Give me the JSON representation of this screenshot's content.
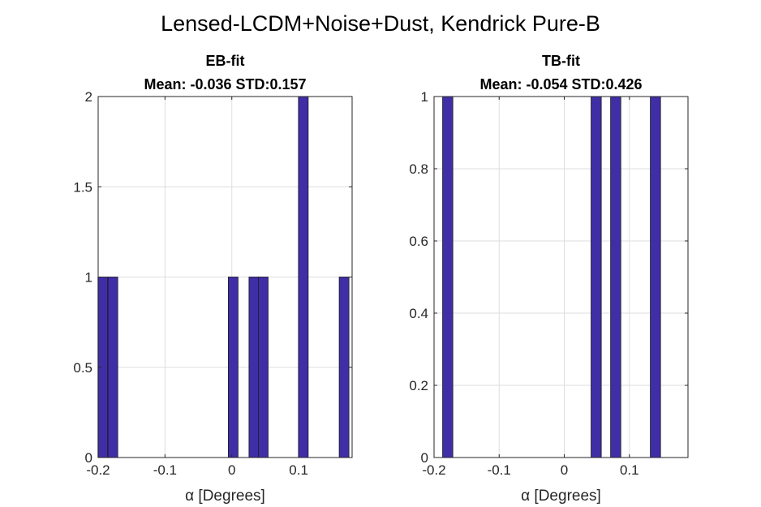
{
  "figure": {
    "title": "Lensed-LCDM+Noise+Dust, Kendrick Pure-B"
  },
  "colors": {
    "bar_fill": "#3F2EA6",
    "bar_edge": "#1a1a1a",
    "grid": "#dedede",
    "axis": "#262626"
  },
  "chart_data": [
    {
      "type": "bar",
      "title": "EB-fit",
      "subtitle": "Mean: -0.036 STD:0.157",
      "xlabel": "α [Degrees]",
      "ylabel": "",
      "xlim": [
        -0.2,
        0.18
      ],
      "ylim": [
        0,
        2
      ],
      "xticks": [
        -0.2,
        -0.1,
        0,
        0.1
      ],
      "xticklabels": [
        "-0.2",
        "-0.1",
        "0",
        "0.1"
      ],
      "yticks": [
        0,
        0.5,
        1,
        1.5,
        2
      ],
      "yticklabels": [
        "0",
        "0.5",
        "1",
        "1.5",
        "2"
      ],
      "grid": true,
      "bin_width": 0.0146,
      "bars": [
        {
          "x": -0.193,
          "count": 1
        },
        {
          "x": -0.178,
          "count": 1
        },
        {
          "x": 0.002,
          "count": 1
        },
        {
          "x": 0.033,
          "count": 1
        },
        {
          "x": 0.047,
          "count": 1
        },
        {
          "x": 0.107,
          "count": 2
        },
        {
          "x": 0.168,
          "count": 1
        }
      ]
    },
    {
      "type": "bar",
      "title": "TB-fit",
      "subtitle": "Mean: -0.054 STD:0.426",
      "xlabel": "α [Degrees]",
      "ylabel": "",
      "xlim": [
        -0.2,
        0.19
      ],
      "ylim": [
        0,
        1
      ],
      "xticks": [
        -0.2,
        -0.1,
        0,
        0.1
      ],
      "xticklabels": [
        "-0.2",
        "-0.1",
        "0",
        "0.1"
      ],
      "yticks": [
        0,
        0.2,
        0.4,
        0.6,
        0.8,
        1
      ],
      "yticklabels": [
        "0",
        "0.2",
        "0.4",
        "0.6",
        "0.8",
        "1"
      ],
      "grid": true,
      "bin_width": 0.0157,
      "bars": [
        {
          "x": -0.179,
          "count": 1
        },
        {
          "x": 0.049,
          "count": 1
        },
        {
          "x": 0.079,
          "count": 1
        },
        {
          "x": 0.14,
          "count": 1
        }
      ]
    }
  ]
}
